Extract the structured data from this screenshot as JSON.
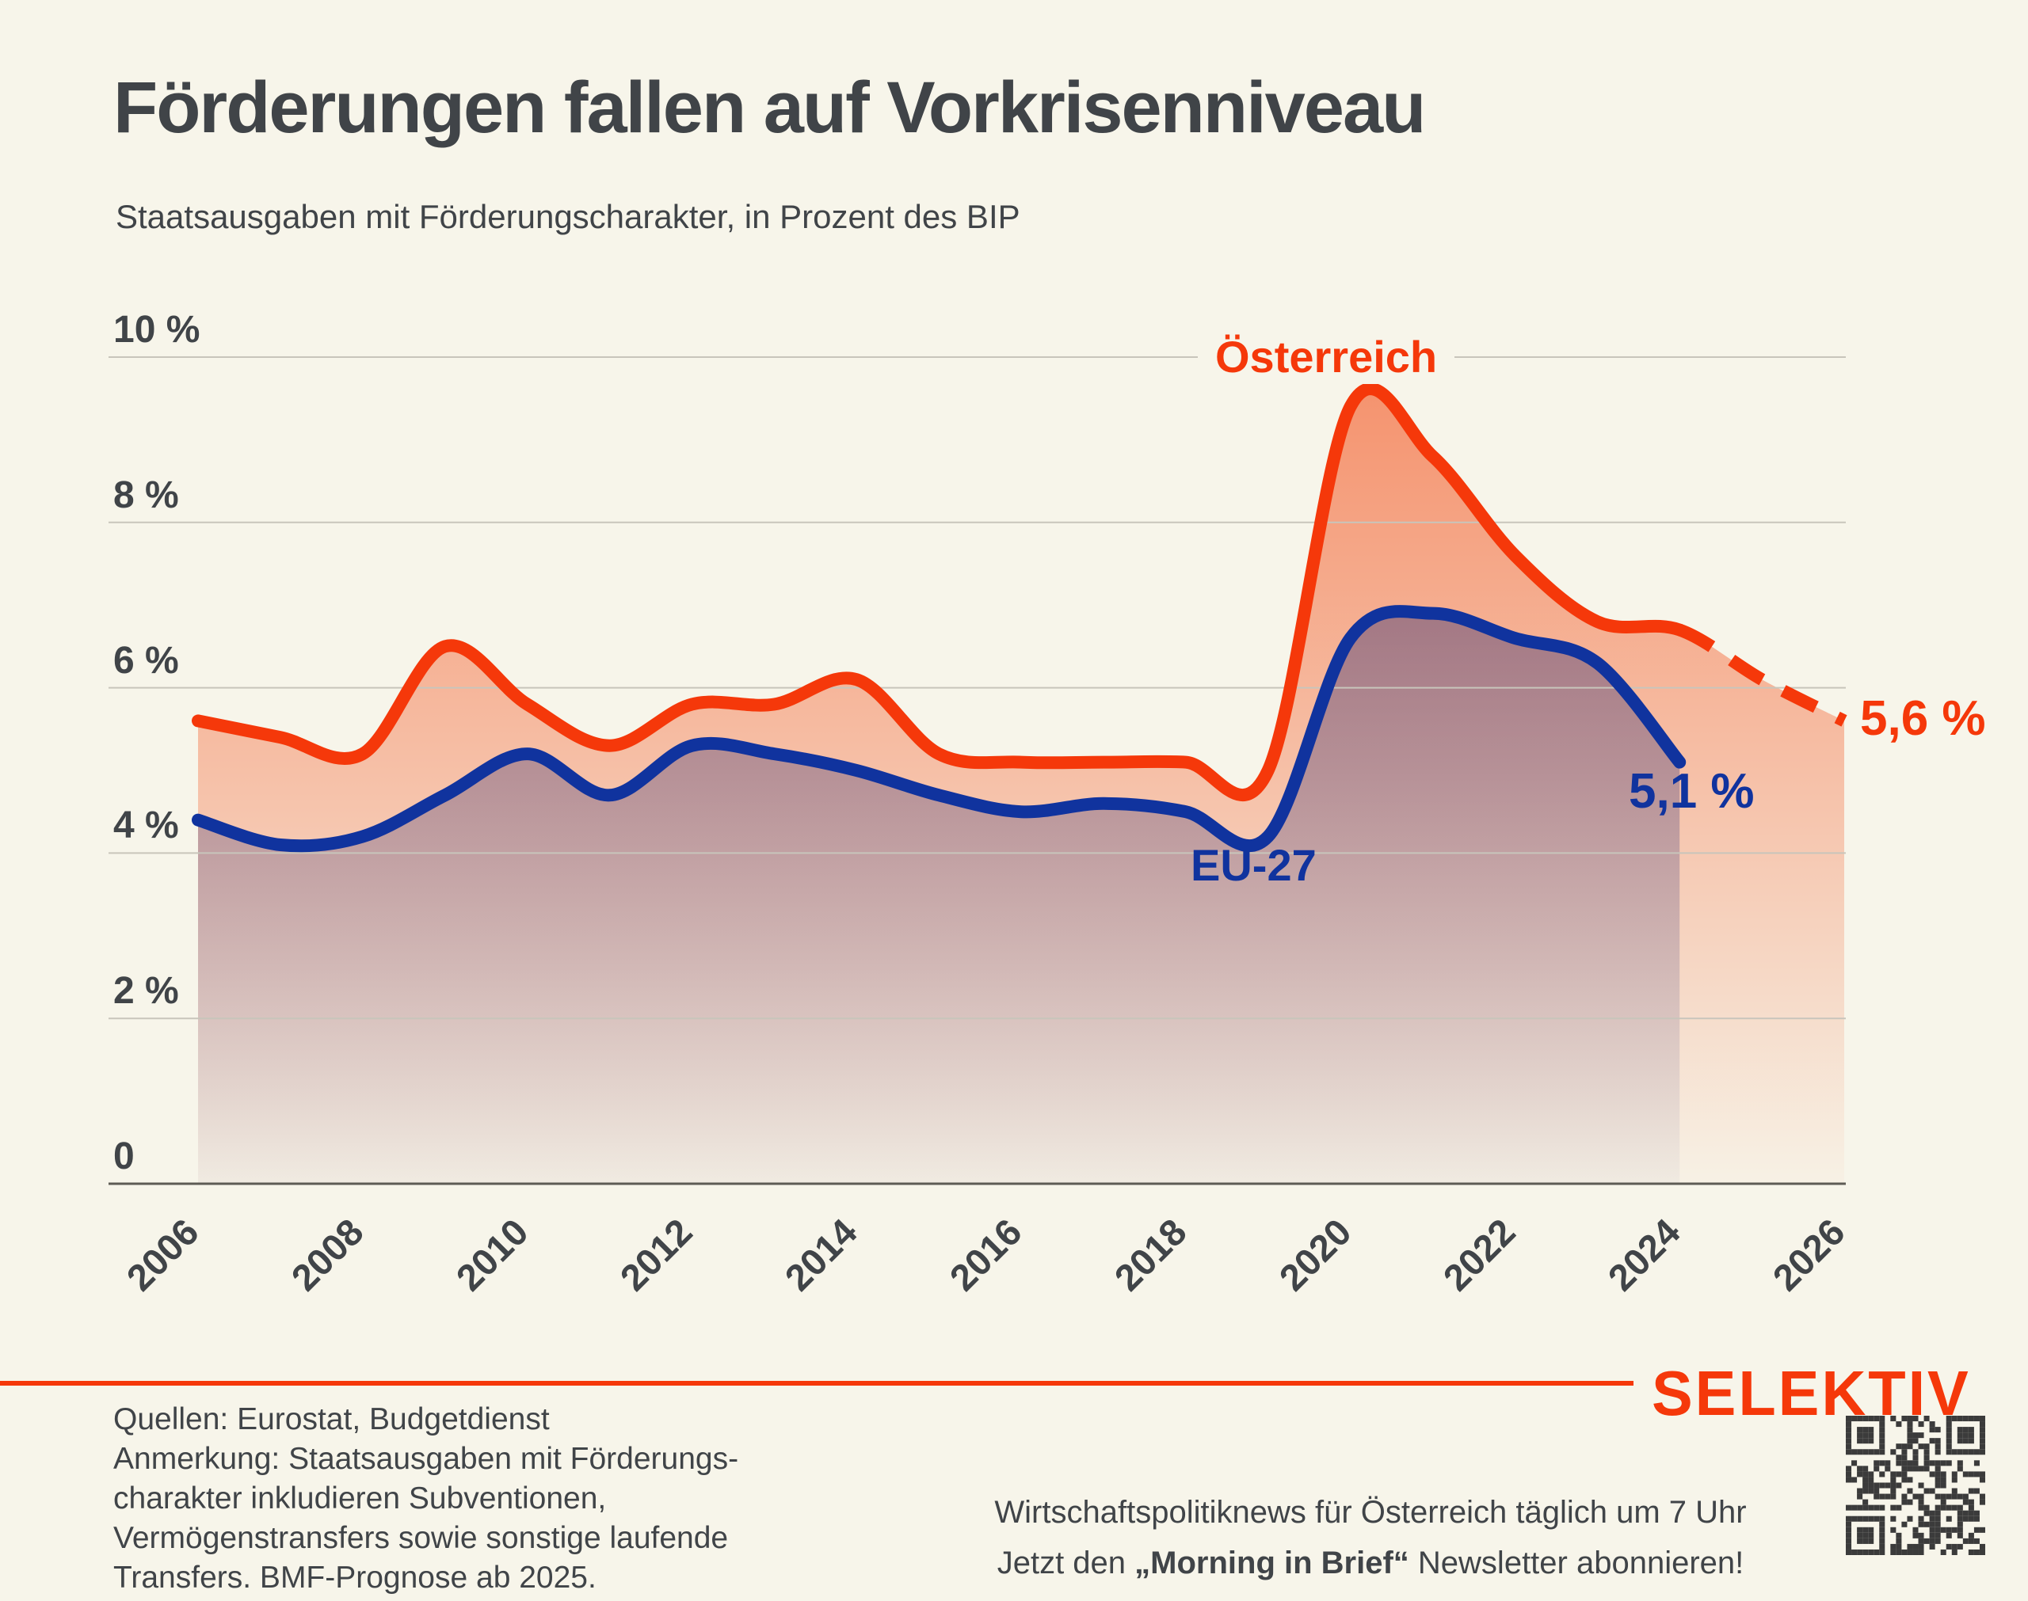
{
  "header": {
    "title": "Förderungen fallen auf Vorkrisenniveau",
    "subtitle": "Staatsausgaben mit Förderungscharakter, in Prozent des BIP"
  },
  "colors": {
    "background": "#F7F5EA",
    "text": "#404448",
    "grid": "#C8C5BB",
    "axis": "#5E5C55",
    "accent_orange": "#F5380A",
    "accent_blue": "#10339E"
  },
  "chart_data": {
    "type": "area",
    "title": "Förderungen fallen auf Vorkrisenniveau",
    "subtitle": "Staatsausgaben mit Förderungscharakter, in Prozent des BIP",
    "x": [
      2006,
      2007,
      2008,
      2009,
      2010,
      2011,
      2012,
      2013,
      2014,
      2015,
      2016,
      2017,
      2018,
      2019,
      2020,
      2021,
      2022,
      2023,
      2024,
      2025,
      2026
    ],
    "series": [
      {
        "name": "Österreich",
        "color": "#F5380A",
        "end_label": "5,6 %",
        "forecast_from_year": 2024,
        "values": [
          5.6,
          5.4,
          5.2,
          6.5,
          5.8,
          5.3,
          5.8,
          5.8,
          6.1,
          5.2,
          5.1,
          5.1,
          5.1,
          5.0,
          9.4,
          8.8,
          7.6,
          6.8,
          6.7,
          6.1,
          5.6
        ]
      },
      {
        "name": "EU-27",
        "color": "#10339E",
        "end_label": "5,1 %",
        "values": [
          4.4,
          4.1,
          4.2,
          4.7,
          5.2,
          4.7,
          5.3,
          5.2,
          5.0,
          4.7,
          4.5,
          4.6,
          4.5,
          4.2,
          6.6,
          6.9,
          6.6,
          6.3,
          5.1
        ]
      }
    ],
    "ylim": [
      0,
      10
    ],
    "yticks": [
      {
        "value": 10,
        "label": "10 %"
      },
      {
        "value": 8,
        "label": "8 %"
      },
      {
        "value": 6,
        "label": "6 %"
      },
      {
        "value": 4,
        "label": "4 %"
      },
      {
        "value": 2,
        "label": "2 %"
      },
      {
        "value": 0,
        "label": "0"
      }
    ],
    "xtick_years": [
      "2006",
      "2008",
      "2010",
      "2012",
      "2014",
      "2016",
      "2018",
      "2020",
      "2022",
      "2024",
      "2026"
    ],
    "grid": true,
    "legend": "inline labels on chart"
  },
  "footer": {
    "sources_note": "Quellen: Eurostat, Budgetdienst\nAnmerkung: Staatsausgaben mit Förderungs-\ncharakter inkludieren Subventionen,\nVermögenstransfers sowie sonstige laufende\nTransfers. BMF-Prognose ab 2025.",
    "brand": "SELEKTIV",
    "newsletter_line1": "Wirtschaftspolitiknews für Österreich täglich um 7 Uhr",
    "newsletter_line2_prefix": "Jetzt den ",
    "newsletter_line2_bold": "„Morning in Brief“",
    "newsletter_line2_suffix": " Newsletter abonnieren!"
  }
}
